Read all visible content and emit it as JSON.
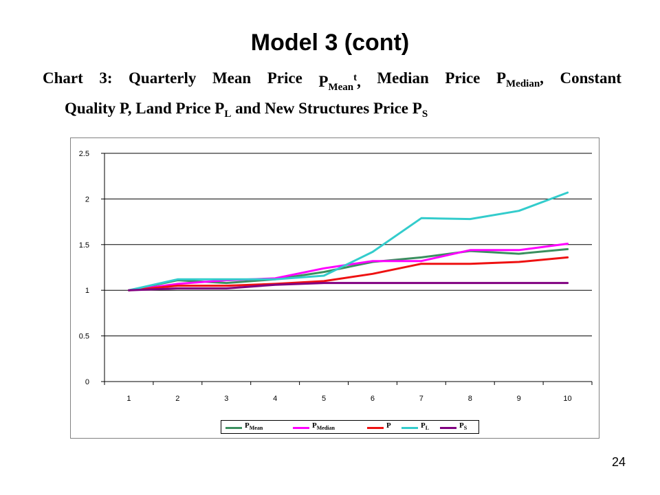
{
  "slide": {
    "title": "Model 3 (cont)",
    "page_number": "24"
  },
  "subtitle": {
    "w1": "Chart",
    "w2": "3:",
    "w3": "Quarterly",
    "w4": "Mean",
    "w5": "Price",
    "w6_base": "P",
    "w6_sub": "Mean",
    "w6_sup": "t",
    "w6_tail": ",",
    "w7": "Median",
    "w8": "Price",
    "w9_base": "P",
    "w9_sub": "Median",
    "w9_tail": ",",
    "w10": "Constant",
    "l2_a": "Quality P, Land Price P",
    "l2_a_sub": "L",
    "l2_b": " and New Structures Price P",
    "l2_b_sub": "S"
  },
  "legend": [
    {
      "base": "P",
      "sub": "Mean",
      "color": "#3a8f5f"
    },
    {
      "base": "P",
      "sub": "Median",
      "color": "#ff00ff"
    },
    {
      "base": "P",
      "sub": "",
      "color": "#ee1111"
    },
    {
      "base": "P",
      "sub": "L",
      "color": "#33cccc"
    },
    {
      "base": "P",
      "sub": "S",
      "color": "#800080"
    }
  ],
  "chart_data": {
    "type": "line",
    "x": [
      1,
      2,
      3,
      4,
      5,
      6,
      7,
      8,
      9,
      10
    ],
    "ylim": [
      0,
      2.5
    ],
    "yticks": [
      "0",
      "0.5",
      "1",
      "1.5",
      "2",
      "2.5"
    ],
    "xticks": [
      "1",
      "2",
      "3",
      "4",
      "5",
      "6",
      "7",
      "8",
      "9",
      "10"
    ],
    "grid": true,
    "legend_position": "bottom",
    "series": [
      {
        "name": "P Mean",
        "color": "#3a8f5f",
        "values": [
          1.0,
          1.11,
          1.08,
          1.12,
          1.2,
          1.31,
          1.36,
          1.43,
          1.4,
          1.45
        ]
      },
      {
        "name": "P Median",
        "color": "#ff00ff",
        "values": [
          1.0,
          1.07,
          1.11,
          1.13,
          1.24,
          1.32,
          1.32,
          1.44,
          1.44,
          1.51
        ]
      },
      {
        "name": "P",
        "color": "#ee1111",
        "values": [
          1.0,
          1.05,
          1.05,
          1.07,
          1.1,
          1.18,
          1.29,
          1.29,
          1.31,
          1.36
        ]
      },
      {
        "name": "P L",
        "color": "#33cccc",
        "values": [
          1.0,
          1.12,
          1.12,
          1.12,
          1.16,
          1.42,
          1.79,
          1.78,
          1.87,
          2.07
        ]
      },
      {
        "name": "P S",
        "color": "#800080",
        "values": [
          1.0,
          1.02,
          1.02,
          1.06,
          1.08,
          1.08,
          1.08,
          1.08,
          1.08,
          1.08
        ]
      }
    ]
  }
}
